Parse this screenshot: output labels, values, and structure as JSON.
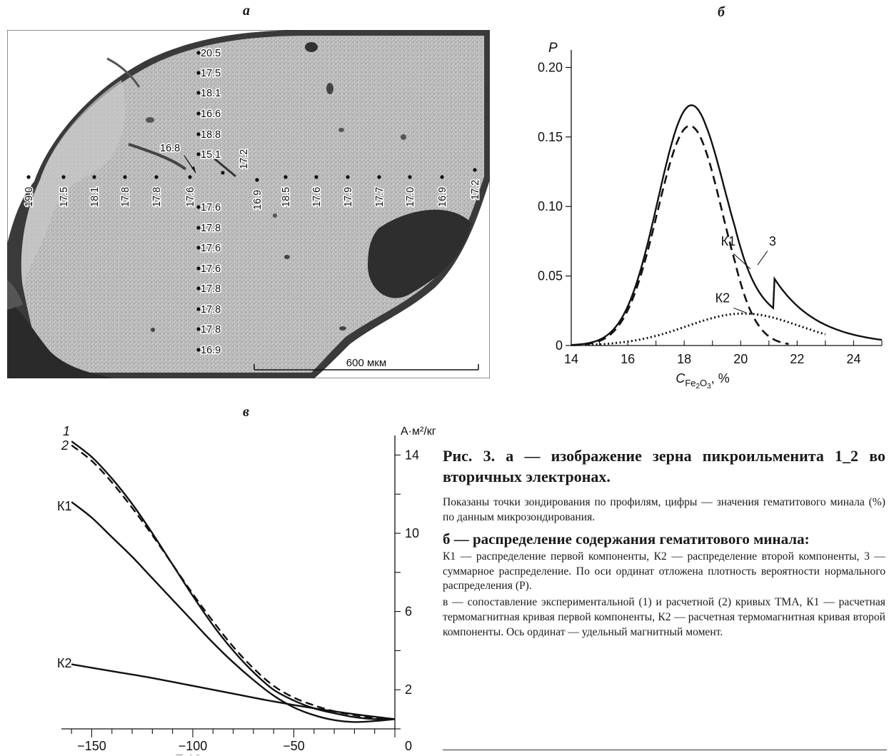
{
  "panels": {
    "a": {
      "letter": "а"
    },
    "b": {
      "letter": "б"
    },
    "v": {
      "letter": "в"
    }
  },
  "micrograph": {
    "scale_label": "600 мкм",
    "vertical_profile": [
      {
        "label": "20.5"
      },
      {
        "label": "17.5"
      },
      {
        "label": "18.1"
      },
      {
        "label": "16.6"
      },
      {
        "label": "18.8"
      },
      {
        "label": "15.1"
      },
      {
        "label": "17.6"
      },
      {
        "label": "17.8"
      },
      {
        "label": "17.6"
      },
      {
        "label": "17.6"
      },
      {
        "label": "17.8"
      },
      {
        "label": "17.8"
      },
      {
        "label": "17.8"
      },
      {
        "label": "16.9"
      }
    ],
    "horizontal_profile": [
      {
        "label": "19.0"
      },
      {
        "label": "17.5"
      },
      {
        "label": "18.1"
      },
      {
        "label": "17.8"
      },
      {
        "label": "17.8"
      },
      {
        "label": "17.6"
      },
      {
        "label": "16.9"
      },
      {
        "label": "18.5"
      },
      {
        "label": "17.6"
      },
      {
        "label": "17.9"
      },
      {
        "label": "17.7"
      },
      {
        "label": "17.0"
      },
      {
        "label": "16.9"
      },
      {
        "label": "17.2"
      }
    ],
    "extra_labels": [
      {
        "label": "16.8"
      },
      {
        "label": "17.2"
      }
    ]
  },
  "chart_data": [
    {
      "type": "line",
      "panel": "б",
      "ylabel": "P",
      "xlabel_main": "C",
      "xlabel_sub": "Fe",
      "xlabel_sub2": "2",
      "xlabel_sub3": "O",
      "xlabel_sub4": "3",
      "xlabel_unit": ", %",
      "xlim": [
        14,
        25
      ],
      "ylim": [
        0,
        0.21
      ],
      "x_ticks": [
        "14",
        "16",
        "18",
        "20",
        "22",
        "24"
      ],
      "y_ticks": [
        "0",
        "0.05",
        "0.10",
        "0.15",
        "0.20"
      ],
      "series": [
        {
          "name": "К1",
          "style": "dashed",
          "mu": 18.2,
          "sigma": 1.15,
          "peak": 0.158
        },
        {
          "name": "К2",
          "style": "dotted",
          "mu": 20.1,
          "sigma": 2.0,
          "peak": 0.023
        },
        {
          "name": "3",
          "style": "solid",
          "composite": true
        }
      ]
    },
    {
      "type": "line",
      "panel": "в",
      "ylabel": "A·м²/кг",
      "xlabel": "T, °C",
      "xlim": [
        -165,
        0
      ],
      "ylim": [
        0,
        15
      ],
      "x_ticks": [
        "−150",
        "−100",
        "−50"
      ],
      "y_ticks": [
        "0",
        "2",
        "6",
        "10",
        "14"
      ],
      "series": [
        {
          "name": "1",
          "style": "solid",
          "x": [
            -160,
            -150,
            -140,
            -130,
            -120,
            -110,
            -100,
            -90,
            -80,
            -70,
            -60,
            -50,
            -40,
            -30,
            -20,
            -10,
            0
          ],
          "y": [
            14.7,
            13.9,
            12.8,
            11.5,
            10.0,
            8.4,
            6.8,
            5.3,
            4.0,
            2.9,
            2.0,
            1.45,
            1.05,
            0.8,
            0.6,
            0.5,
            0.5
          ]
        },
        {
          "name": "2",
          "style": "dashed",
          "x": [
            -160,
            -150,
            -140,
            -130,
            -120,
            -110,
            -100,
            -90,
            -80,
            -70,
            -60,
            -50,
            -40,
            -30,
            -20,
            -10,
            0
          ],
          "y": [
            14.5,
            13.7,
            12.6,
            11.3,
            9.9,
            8.4,
            6.9,
            5.5,
            4.2,
            3.1,
            2.2,
            1.6,
            1.2,
            0.9,
            0.7,
            0.55,
            0.5
          ]
        },
        {
          "name": "К1",
          "style": "solid",
          "x": [
            -160,
            -150,
            -140,
            -130,
            -120,
            -110,
            -100,
            -90,
            -80,
            -70,
            -60,
            -50,
            -40,
            -30,
            -20,
            -10,
            0
          ],
          "y": [
            11.6,
            10.8,
            9.8,
            8.8,
            7.7,
            6.6,
            5.5,
            4.4,
            3.4,
            2.5,
            1.7,
            1.1,
            0.7,
            0.45,
            0.35,
            0.4,
            0.5
          ]
        },
        {
          "name": "К2",
          "style": "solid",
          "x": [
            -160,
            -140,
            -120,
            -100,
            -80,
            -60,
            -40,
            -20,
            0
          ],
          "y": [
            3.3,
            2.95,
            2.6,
            2.2,
            1.8,
            1.4,
            1.05,
            0.75,
            0.5
          ]
        }
      ]
    }
  ],
  "caption": {
    "title": "Рис. 3. а — изображение зерна пикроильменита 1_2 во вторичных электронах.",
    "text1": "Показаны точки зондирования по профилям, цифры — значения гематитового минала (%) по данным микрозондирования.",
    "head2": "б — распределение содержания гематитового минала:",
    "text2": "К1 — распределение первой компоненты, К2 — распределение второй компоненты, 3 — суммарное распределение. По оси ординат отложена плотность вероятности нормального распределения (P).",
    "text3": "в — сопоставление экспериментальной (1) и расчетной (2) кривых ТМА, К1 — расчетная термомагнитная кривая первой компоненты, К2 — расчетная термомагнитная кривая второй компоненты. Ось ординат — удельный магнитный момент."
  }
}
